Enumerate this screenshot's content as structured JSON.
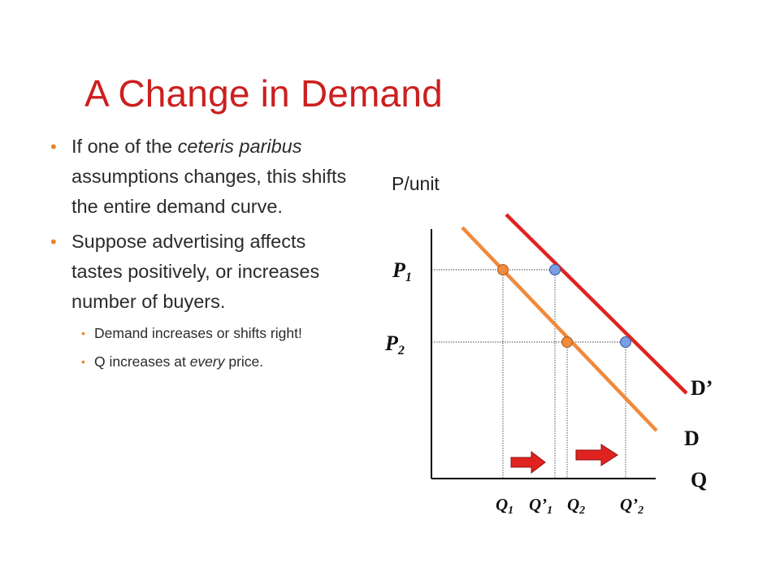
{
  "slide": {
    "title": "A Change in Demand",
    "bullets": [
      {
        "level": 1,
        "runs": [
          {
            "text": "If one of the ",
            "italic": false
          },
          {
            "text": "ceteris paribus",
            "italic": true
          },
          {
            "text": " assumptions changes, this shifts the entire demand curve.",
            "italic": false
          }
        ]
      },
      {
        "level": 1,
        "runs": [
          {
            "text": "Suppose advertising affects tastes positively, or increases number of buyers.",
            "italic": false
          }
        ]
      },
      {
        "level": 2,
        "runs": [
          {
            "text": "Demand increases or shifts right!",
            "italic": false
          }
        ]
      },
      {
        "level": 2,
        "runs": [
          {
            "text": "Q increases at ",
            "italic": false
          },
          {
            "text": "every",
            "italic": true
          },
          {
            "text": " price.",
            "italic": false
          }
        ]
      }
    ]
  },
  "colors": {
    "title": "#cc1f1f",
    "bullet_marker": "#e8862b",
    "curve_D": "#f08a3c",
    "curve_D_prime": "#e0231f",
    "point_on_D": "#f08a3c",
    "point_on_D_prime": "#7a9ee0",
    "arrow": "#e0231f"
  },
  "chart_data": {
    "type": "line",
    "ylabel": "P/unit",
    "xlabel": "Q",
    "price_labels": [
      {
        "base": "P",
        "sub": "1"
      },
      {
        "base": "P",
        "sub": "2"
      }
    ],
    "quantity_labels": [
      {
        "base": "Q",
        "prime": "",
        "sub": "1"
      },
      {
        "base": "Q",
        "prime": "’",
        "sub": "1"
      },
      {
        "base": "Q",
        "prime": "",
        "sub": "2"
      },
      {
        "base": "Q",
        "prime": "’",
        "sub": "2"
      }
    ],
    "series": [
      {
        "name": "D",
        "color": "#f08a3c"
      },
      {
        "name": "D’",
        "color": "#e0231f"
      }
    ],
    "shift_arrows": 2
  }
}
